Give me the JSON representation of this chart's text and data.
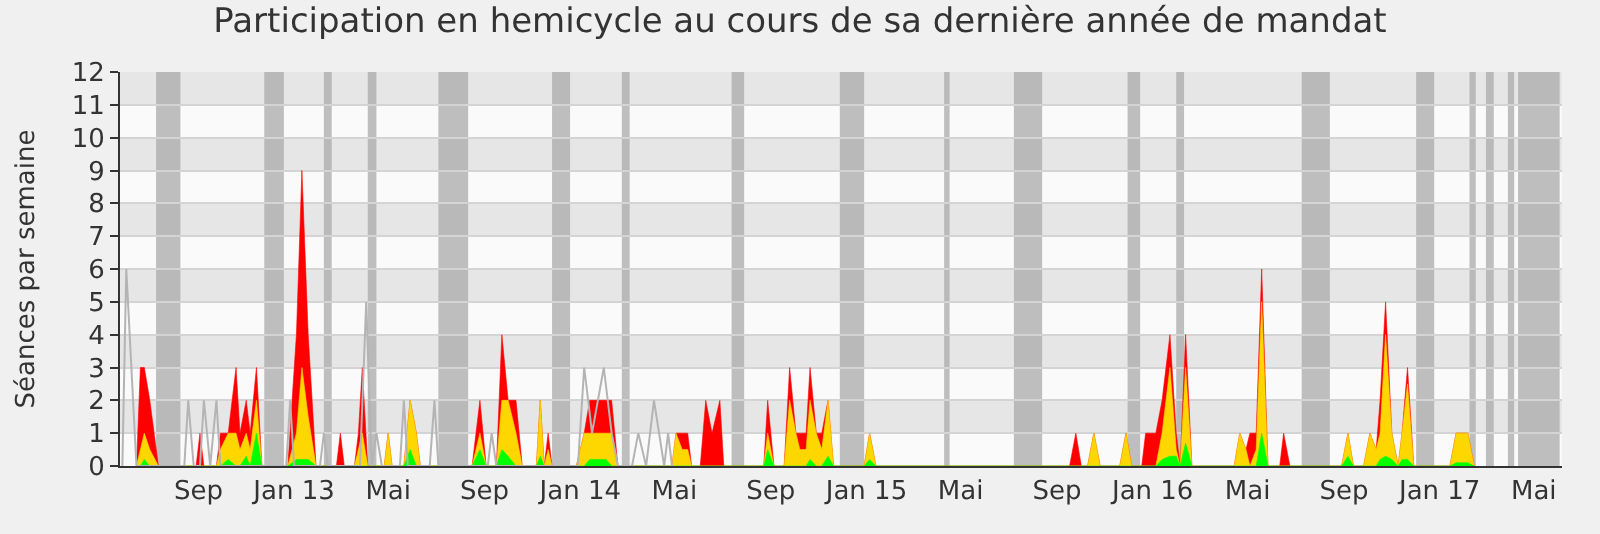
{
  "chart_data": {
    "type": "area",
    "title": "Participation en hemicycle au cours de sa dernière année de mandat",
    "ylabel": "Séances par semaine",
    "x": [
      "2012-06-14",
      "2012-06-19",
      "2012-06-24",
      "2012-07-01",
      "2012-07-12",
      "2012-08-29",
      "2012-09-03",
      "2012-09-08",
      "2012-09-24",
      "2012-09-29",
      "2012-10-09",
      "2012-10-19",
      "2012-10-24",
      "2012-11-01",
      "2012-11-06",
      "2012-11-14",
      "2012-11-21",
      "2012-12-24",
      "2013-01-04",
      "2013-01-11",
      "2013-01-19",
      "2013-01-29",
      "2013-02-24",
      "2013-03-01",
      "2013-03-06",
      "2013-03-19",
      "2013-03-24",
      "2013-03-29",
      "2013-04-05",
      "2013-04-26",
      "2013-05-01",
      "2013-05-06",
      "2013-05-21",
      "2013-05-29",
      "2013-06-06",
      "2013-06-11",
      "2013-08-16",
      "2013-08-26",
      "2013-09-03",
      "2013-09-16",
      "2013-09-23",
      "2013-10-01",
      "2013-10-11",
      "2013-10-19",
      "2013-11-06",
      "2013-11-11",
      "2013-11-16",
      "2013-11-21",
      "2013-11-26",
      "2013-12-27",
      "2014-01-06",
      "2014-01-13",
      "2014-01-21",
      "2014-02-03",
      "2014-02-10",
      "2014-02-18",
      "2014-04-28",
      "2014-05-03",
      "2014-05-11",
      "2014-05-18",
      "2014-05-23",
      "2014-06-03",
      "2014-06-10",
      "2014-06-18",
      "2014-06-28",
      "2014-07-03",
      "2014-08-23",
      "2014-08-28",
      "2014-09-05",
      "2014-09-18",
      "2014-09-25",
      "2014-10-03",
      "2014-10-08",
      "2014-10-16",
      "2014-10-21",
      "2014-10-29",
      "2014-11-05",
      "2014-11-13",
      "2014-11-20",
      "2014-12-29",
      "2015-01-05",
      "2015-01-13",
      "2015-09-17",
      "2015-09-25",
      "2015-10-02",
      "2015-10-10",
      "2015-10-18",
      "2015-10-26",
      "2015-11-20",
      "2015-11-28",
      "2015-12-05",
      "2015-12-18",
      "2015-12-23",
      "2016-01-05",
      "2016-01-13",
      "2016-01-23",
      "2016-01-31",
      "2016-02-05",
      "2016-02-12",
      "2016-02-20",
      "2016-04-14",
      "2016-04-21",
      "2016-04-29",
      "2016-05-04",
      "2016-05-12",
      "2016-05-19",
      "2016-05-27",
      "2016-06-11",
      "2016-06-16",
      "2016-06-24",
      "2016-08-29",
      "2016-09-06",
      "2016-09-13",
      "2016-09-26",
      "2016-10-04",
      "2016-10-12",
      "2016-10-17",
      "2016-10-24",
      "2016-11-01",
      "2016-11-09",
      "2016-11-14",
      "2016-11-21",
      "2016-11-29",
      "2017-01-14",
      "2017-01-22",
      "2017-02-06",
      "2017-02-14"
    ],
    "series": [
      {
        "type": "line",
        "color": "#b4b4b4",
        "x": [
          "2012-05-27",
          "2012-06-01",
          "2012-06-14",
          "2012-08-14",
          "2012-08-19",
          "2012-08-26",
          "2012-09-03",
          "2012-09-08",
          "2012-09-16",
          "2012-09-24",
          "2012-09-29",
          "2012-12-22",
          "2012-12-27",
          "2013-01-01",
          "2013-02-03",
          "2013-02-08",
          "2013-02-13",
          "2013-03-26",
          "2013-04-03",
          "2013-04-10",
          "2013-04-16",
          "2013-04-23",
          "2013-05-16",
          "2013-05-21",
          "2013-05-26",
          "2013-06-23",
          "2013-06-29",
          "2013-07-04",
          "2013-09-05",
          "2013-09-10",
          "2013-09-16",
          "2013-12-29",
          "2014-01-06",
          "2014-01-16",
          "2014-01-31",
          "2014-02-10",
          "2014-02-18",
          "2014-03-08",
          "2014-03-16",
          "2014-03-26",
          "2014-04-05",
          "2014-04-18",
          "2014-04-23",
          "2014-04-28"
        ],
        "values": [
          0,
          6,
          0,
          0,
          2,
          0,
          0,
          2,
          0,
          2,
          0,
          0,
          2,
          0,
          0,
          1,
          0,
          0,
          5,
          0,
          1,
          0,
          0,
          2,
          0,
          0,
          2,
          0,
          0,
          1,
          0,
          0,
          3,
          1,
          3,
          1,
          0,
          0,
          1,
          0,
          2,
          0,
          1,
          0
        ]
      },
      {
        "color": "#ff0000",
        "values": [
          0,
          3,
          3,
          2,
          0,
          0,
          1,
          0,
          0,
          1,
          1,
          3,
          1,
          2,
          1,
          3,
          0,
          0,
          4,
          9,
          4,
          0,
          0,
          1,
          0,
          0,
          1,
          3,
          0,
          0,
          1,
          0,
          0,
          2,
          1,
          0,
          0,
          2,
          0,
          0,
          4,
          2,
          2,
          0,
          0,
          2,
          0,
          1,
          0,
          0,
          1,
          2,
          2,
          2,
          2,
          0,
          0,
          1,
          1,
          1,
          0,
          0,
          2,
          1,
          2,
          0,
          0,
          2,
          0,
          0,
          3,
          1,
          1,
          1,
          3,
          1,
          1,
          2,
          0,
          0,
          1,
          0,
          0,
          1,
          0,
          0,
          1,
          0,
          0,
          1,
          0,
          0,
          1,
          1,
          2,
          4,
          1,
          0,
          4,
          0,
          0,
          1,
          0.5,
          1,
          1,
          6,
          0,
          0,
          1,
          0,
          0,
          1,
          0,
          0,
          1,
          0.5,
          2,
          5,
          1,
          0,
          1,
          3,
          0,
          0,
          1,
          1,
          0
        ]
      },
      {
        "color": "#ffd700",
        "values": [
          0,
          0.5,
          1,
          0.5,
          0,
          0,
          0,
          0,
          0,
          0.5,
          1,
          1,
          0.5,
          1,
          0.5,
          2,
          0,
          0,
          1,
          3,
          1.5,
          0,
          0,
          0,
          0,
          0,
          0.5,
          1,
          0,
          0,
          1,
          0,
          0,
          2,
          1,
          0,
          0,
          1,
          0,
          0,
          2,
          2,
          1,
          0,
          0,
          2,
          0,
          0.5,
          0,
          0,
          1,
          1,
          1,
          1,
          1,
          0,
          0,
          1,
          0.5,
          0.5,
          0,
          0,
          0,
          0,
          0,
          0,
          0,
          1,
          0,
          0,
          2,
          1,
          0.5,
          0.5,
          2,
          1,
          0.5,
          2,
          0,
          0,
          1,
          0,
          0,
          0,
          0,
          0,
          1,
          0,
          0,
          1,
          0,
          0,
          0,
          0,
          1,
          3,
          0.5,
          0,
          3,
          0,
          0,
          1,
          0.5,
          0,
          0.5,
          5,
          0,
          0,
          0,
          0,
          0,
          1,
          0,
          0,
          1,
          0.5,
          1,
          4,
          1,
          0,
          1,
          2.5,
          0,
          0,
          1,
          1,
          0
        ]
      },
      {
        "color": "#00ff00",
        "values": [
          0,
          0,
          0.2,
          0,
          0,
          0,
          0,
          0,
          0,
          0,
          0.2,
          0,
          0,
          0.3,
          0,
          1,
          0,
          0,
          0.2,
          0.2,
          0.2,
          0,
          0,
          0,
          0,
          0,
          0,
          0,
          0,
          0,
          0,
          0,
          0,
          0.5,
          0,
          0,
          0,
          0.5,
          0,
          0,
          0.5,
          0.3,
          0,
          0,
          0,
          0.3,
          0,
          0,
          0,
          0,
          0,
          0.2,
          0.2,
          0.2,
          0,
          0,
          0,
          0,
          0,
          0,
          0,
          0,
          0,
          0,
          0,
          0,
          0,
          0.5,
          0,
          0,
          0,
          0,
          0,
          0,
          0.2,
          0,
          0,
          0.3,
          0,
          0,
          0.2,
          0,
          0,
          0,
          0,
          0,
          0,
          0,
          0,
          0,
          0,
          0,
          0,
          0,
          0.2,
          0.3,
          0.3,
          0,
          0.7,
          0,
          0,
          0,
          0,
          0,
          0,
          1,
          0,
          0,
          0,
          0,
          0,
          0.3,
          0,
          0,
          0,
          0,
          0.2,
          0.3,
          0.2,
          0,
          0.2,
          0.2,
          0,
          0,
          0.1,
          0.1,
          0
        ]
      }
    ],
    "xlim": [
      "2012-05-24",
      "2017-06-06"
    ],
    "xticks": [
      {
        "value": "2012-09-01",
        "label": "Sep"
      },
      {
        "value": "2013-01-01",
        "label": "Jan 13"
      },
      {
        "value": "2013-05-01",
        "label": "Mai"
      },
      {
        "value": "2013-09-01",
        "label": "Sep"
      },
      {
        "value": "2014-01-01",
        "label": "Jan 14"
      },
      {
        "value": "2014-05-01",
        "label": "Mai"
      },
      {
        "value": "2014-09-01",
        "label": "Sep"
      },
      {
        "value": "2015-01-01",
        "label": "Jan 15"
      },
      {
        "value": "2015-05-01",
        "label": "Mai"
      },
      {
        "value": "2015-09-01",
        "label": "Sep"
      },
      {
        "value": "2016-01-01",
        "label": "Jan 16"
      },
      {
        "value": "2016-05-01",
        "label": "Mai"
      },
      {
        "value": "2016-09-01",
        "label": "Sep"
      },
      {
        "value": "2017-01-01",
        "label": "Jan 17"
      },
      {
        "value": "2017-05-01",
        "label": "Mai"
      }
    ],
    "ylim": [
      0,
      12
    ],
    "yticks": [
      0,
      1,
      2,
      3,
      4,
      5,
      6,
      7,
      8,
      9,
      10,
      11,
      12
    ],
    "grid": "y",
    "bands": [
      {
        "axis": "x",
        "from": "2012-07-09",
        "to": "2012-08-09",
        "color": "#aaaaaa"
      },
      {
        "axis": "x",
        "from": "2012-11-24",
        "to": "2012-12-19",
        "color": "#aaaaaa"
      },
      {
        "axis": "x",
        "from": "2013-02-08",
        "to": "2013-02-18",
        "color": "#aaaaaa"
      },
      {
        "axis": "x",
        "from": "2013-04-05",
        "to": "2013-04-16",
        "color": "#aaaaaa"
      },
      {
        "axis": "x",
        "from": "2013-07-04",
        "to": "2013-08-11",
        "color": "#aaaaaa"
      },
      {
        "axis": "x",
        "from": "2013-11-26",
        "to": "2013-12-19",
        "color": "#aaaaaa"
      },
      {
        "axis": "x",
        "from": "2014-02-23",
        "to": "2014-03-05",
        "color": "#aaaaaa"
      },
      {
        "axis": "x",
        "from": "2014-07-13",
        "to": "2014-07-29",
        "color": "#aaaaaa"
      },
      {
        "axis": "x",
        "from": "2014-11-28",
        "to": "2014-12-29",
        "color": "#aaaaaa"
      },
      {
        "axis": "x",
        "from": "2015-04-10",
        "to": "2015-04-17",
        "color": "#aaaaaa"
      },
      {
        "axis": "x",
        "from": "2015-07-08",
        "to": "2015-08-13",
        "color": "#aaaaaa"
      },
      {
        "axis": "x",
        "from": "2015-11-30",
        "to": "2015-12-16",
        "color": "#aaaaaa"
      },
      {
        "axis": "x",
        "from": "2016-01-31",
        "to": "2016-02-10",
        "color": "#aaaaaa"
      },
      {
        "axis": "x",
        "from": "2016-07-09",
        "to": "2016-08-14",
        "color": "#aaaaaa"
      },
      {
        "axis": "x",
        "from": "2016-12-02",
        "to": "2016-12-25",
        "color": "#aaaaaa"
      },
      {
        "axis": "x",
        "from": "2017-02-08",
        "to": "2017-02-16",
        "color": "#aaaaaa"
      },
      {
        "axis": "x",
        "from": "2017-03-01",
        "to": "2017-03-11",
        "color": "#aaaaaa"
      },
      {
        "axis": "x",
        "from": "2017-03-29",
        "to": "2017-04-06",
        "color": "#aaaaaa"
      },
      {
        "axis": "x",
        "from": "2017-04-11",
        "to": "2017-06-03",
        "color": "#aaaaaa"
      }
    ]
  }
}
